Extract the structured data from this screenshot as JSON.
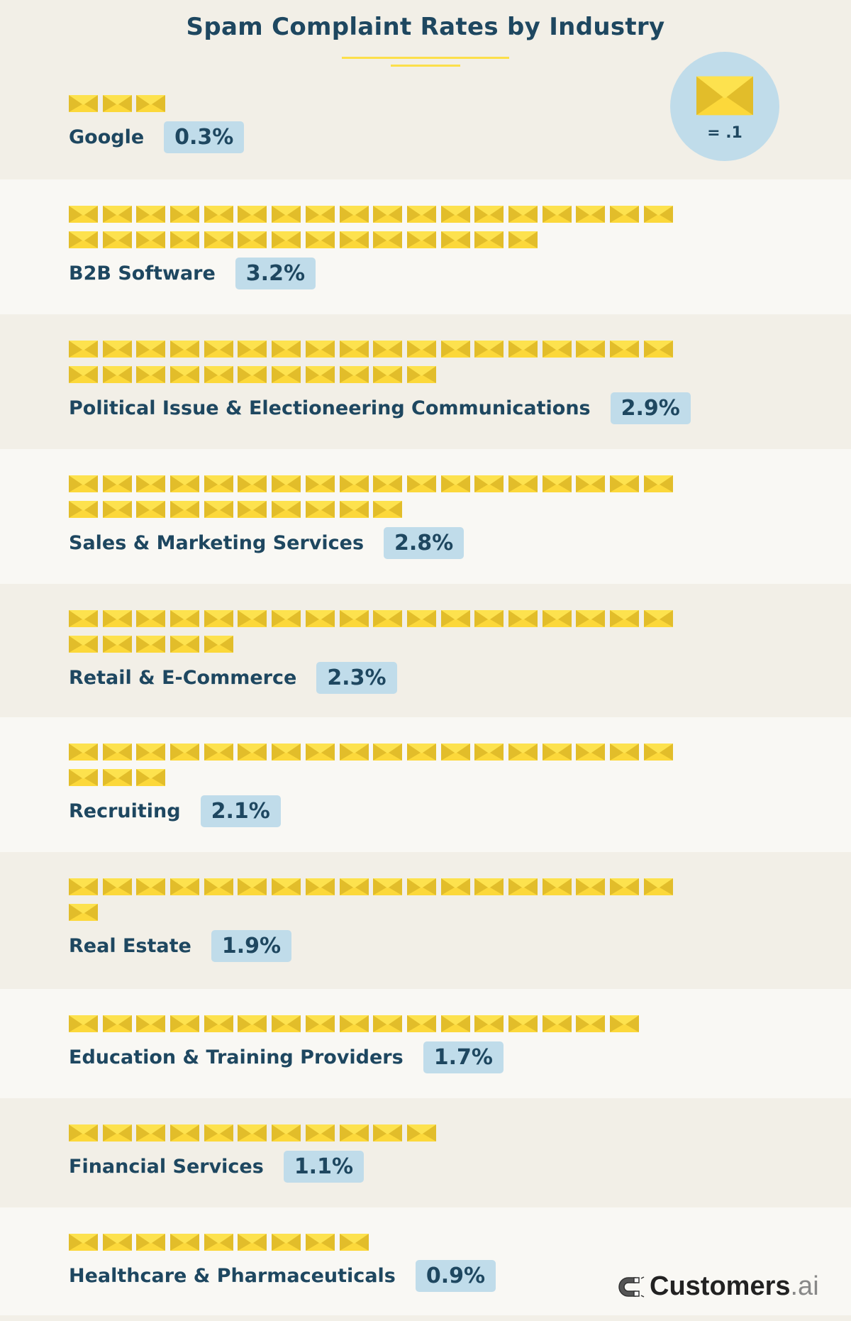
{
  "chart_data": {
    "type": "pictograph",
    "title": "Spam Complaint Rates by Industry",
    "unit_legend": "= .1",
    "icon": "envelope-icon",
    "icons_per_row": 18,
    "categories": [
      "Google",
      "B2B Software",
      "Political Issue & Electioneering Communications",
      "Sales & Marketing Services",
      "Retail & E-Commerce",
      "Recruiting",
      "Real Estate",
      "Education & Training Providers",
      "Financial Services",
      "Healthcare & Pharmaceuticals"
    ],
    "values": [
      0.3,
      3.2,
      2.9,
      2.8,
      2.3,
      2.1,
      1.9,
      1.7,
      1.1,
      0.9
    ],
    "labels": [
      "0.3%",
      "3.2%",
      "2.9%",
      "2.8%",
      "2.3%",
      "2.1%",
      "1.9%",
      "1.7%",
      "1.1%",
      "0.9%"
    ]
  },
  "colors": {
    "envelope": "#fcd83a",
    "envelope_flap": "#e2bd2a",
    "badge": "#c0dcea",
    "text": "#1e4760",
    "band_a": "#f2efe7",
    "band_b": "#f9f8f4"
  },
  "logo": {
    "brand": "Customers",
    "suffix": ".ai"
  }
}
